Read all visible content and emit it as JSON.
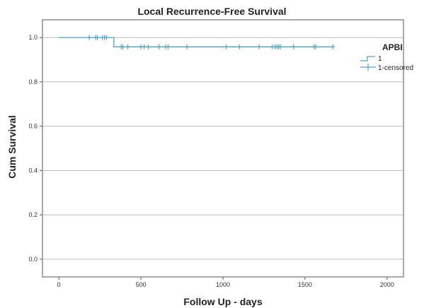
{
  "chart_data": {
    "type": "line",
    "title": "Local Recurrence-Free Survival",
    "xlabel": "Follow Up - days",
    "ylabel": "Cum Survival",
    "xlim": [
      -100,
      2100
    ],
    "ylim": [
      -0.08,
      1.08
    ],
    "x_ticks": [
      0,
      500,
      1000,
      1500,
      2000
    ],
    "y_ticks": [
      0.0,
      0.2,
      0.4,
      0.6,
      0.8,
      1.0
    ],
    "y_tick_labels": [
      "0.0",
      "0.2",
      "0.4",
      "0.6",
      "0.8",
      "1.0"
    ],
    "grid": "horizontal",
    "legend": {
      "title": "APBI",
      "placement": "right",
      "entries": [
        "1",
        "1-censored"
      ]
    },
    "color": "#4ea3cd",
    "series": [
      {
        "name": "1",
        "x": [
          0,
          335,
          335,
          1670
        ],
        "y": [
          1.0,
          1.0,
          0.958,
          0.958
        ]
      }
    ],
    "censored": {
      "x": [
        185,
        225,
        235,
        265,
        278,
        290,
        380,
        390,
        420,
        500,
        520,
        545,
        610,
        650,
        665,
        780,
        1020,
        1100,
        1220,
        1300,
        1318,
        1330,
        1340,
        1350,
        1430,
        1555,
        1565,
        1670
      ],
      "y": [
        1.0,
        1.0,
        1.0,
        1.0,
        1.0,
        1.0,
        0.958,
        0.958,
        0.958,
        0.958,
        0.958,
        0.958,
        0.958,
        0.958,
        0.958,
        0.958,
        0.958,
        0.958,
        0.958,
        0.958,
        0.958,
        0.958,
        0.958,
        0.958,
        0.958,
        0.958,
        0.958,
        0.958
      ]
    }
  }
}
